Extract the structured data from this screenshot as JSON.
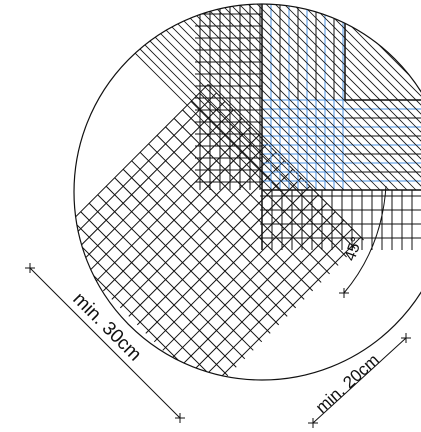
{
  "labels": {
    "min_30cm": "min. 30cm",
    "min_20cm": "min. 20cm",
    "angle": "45°"
  },
  "colors": {
    "line": "#111111",
    "highlight": "#4a90e2",
    "background": "#ffffff"
  }
}
